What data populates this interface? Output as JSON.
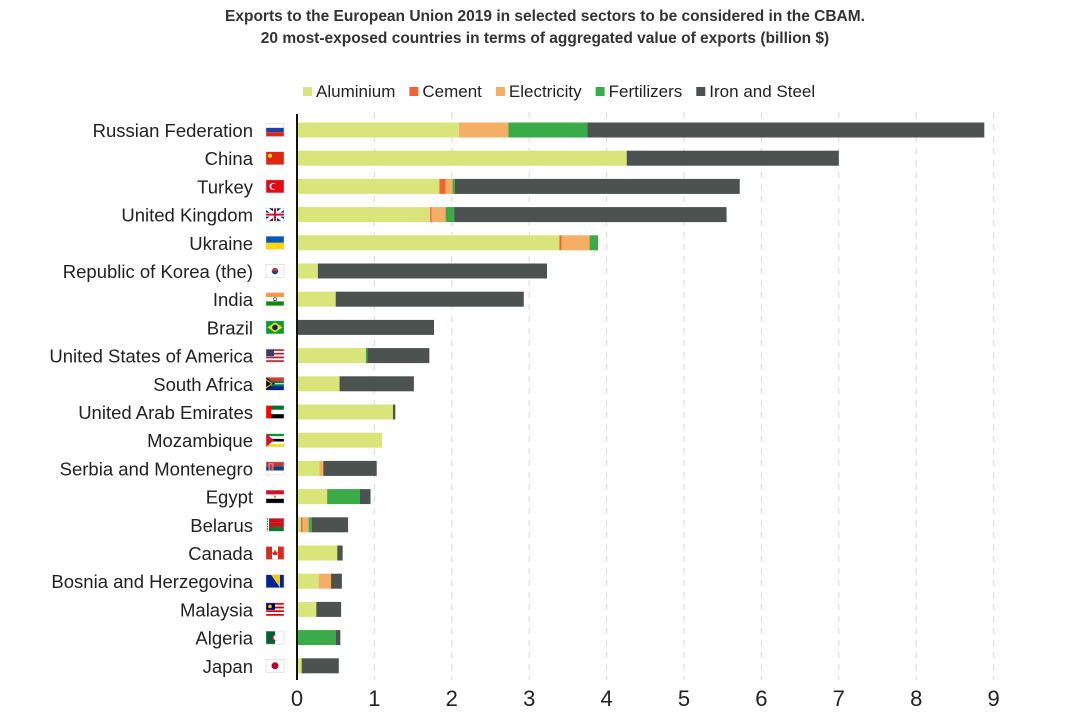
{
  "chart_data": {
    "type": "bar",
    "orientation": "horizontal",
    "stacked": true,
    "title": "Exports to the European Union 2019 in selected sectors to be considered in the CBAM.",
    "subtitle": "20 most-exposed countries in terms of aggregated value of exports (billion $)",
    "xlabel": "",
    "ylabel": "",
    "xlim": [
      0,
      9
    ],
    "xticks": [
      "0",
      "1",
      "2",
      "3",
      "4",
      "5",
      "6",
      "7",
      "8",
      "9"
    ],
    "grid": "vertical dashed",
    "legend": "top",
    "categories": [
      "Russian Federation",
      "China",
      "Turkey",
      "United Kingdom",
      "Ukraine",
      "Republic of Korea (the)",
      "India",
      "Brazil",
      "United States of America",
      "South Africa",
      "United Arab Emirates",
      "Mozambique",
      "Serbia and Montenegro",
      "Egypt",
      "Belarus",
      "Canada",
      "Bosnia and Herzegovina",
      "Malaysia",
      "Algeria",
      "Japan"
    ],
    "series": [
      {
        "name": "Aluminium",
        "color": "#d9e57a",
        "values": [
          2.09,
          4.26,
          1.84,
          1.72,
          3.39,
          0.27,
          0.5,
          0,
          0.89,
          0.55,
          1.24,
          1.1,
          0.29,
          0.39,
          0.05,
          0.52,
          0.28,
          0.25,
          0,
          0.06
        ]
      },
      {
        "name": "Cement",
        "color": "#ef6430",
        "values": [
          0,
          0,
          0.08,
          0.02,
          0.03,
          0,
          0,
          0,
          0,
          0,
          0,
          0,
          0,
          0,
          0.02,
          0,
          0,
          0,
          0,
          0
        ]
      },
      {
        "name": "Electricity",
        "color": "#f5ae66",
        "values": [
          0.64,
          0,
          0.09,
          0.18,
          0.36,
          0,
          0,
          0,
          0,
          0,
          0,
          0,
          0.05,
          0,
          0.08,
          0,
          0.16,
          0,
          0,
          0
        ]
      },
      {
        "name": "Fertilizers",
        "color": "#3aab48",
        "values": [
          1.02,
          0,
          0.03,
          0.11,
          0.11,
          0,
          0,
          0,
          0.02,
          0,
          0,
          0,
          0,
          0.42,
          0.04,
          0,
          0,
          0,
          0.5,
          0
        ]
      },
      {
        "name": "Iron and Steel",
        "color": "#4b524f",
        "values": [
          5.13,
          2.74,
          3.68,
          3.52,
          0,
          2.96,
          2.43,
          1.77,
          0.8,
          0.96,
          0.03,
          0,
          0.69,
          0.14,
          0.47,
          0.07,
          0.14,
          0.32,
          0.06,
          0.48
        ]
      }
    ],
    "flags": [
      "russia",
      "china",
      "turkey",
      "united-kingdom",
      "ukraine",
      "south-korea",
      "india",
      "brazil",
      "usa",
      "south-africa",
      "uae",
      "mozambique",
      "serbia-montenegro",
      "egypt",
      "belarus",
      "canada",
      "bosnia",
      "malaysia",
      "algeria",
      "japan"
    ]
  }
}
